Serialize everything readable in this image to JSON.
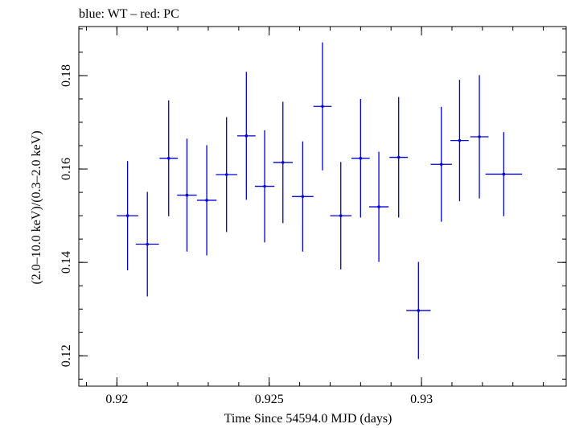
{
  "chart_data": {
    "type": "scatter",
    "title": "blue: WT – red: PC",
    "xlabel": "Time Since 54594.0 MJD (days)",
    "ylabel": "(2.0–10.0 keV)/(0.3–2.0 keV)",
    "xlim": [
      0.91875,
      0.93475
    ],
    "ylim": [
      0.1135,
      0.1905
    ],
    "x_ticks": [
      {
        "value": 0.92,
        "label": "0.92"
      },
      {
        "value": 0.925,
        "label": "0.925"
      },
      {
        "value": 0.93,
        "label": "0.93"
      }
    ],
    "y_ticks": [
      {
        "value": 0.12,
        "label": "0.12"
      },
      {
        "value": 0.14,
        "label": "0.14"
      },
      {
        "value": 0.16,
        "label": "0.16"
      },
      {
        "value": 0.18,
        "label": "0.18"
      }
    ],
    "x_minor_step": 0.001,
    "y_minor_step": 0.005,
    "series": [
      {
        "color": "#0000dd",
        "points": [
          {
            "x": 0.92035,
            "y": 0.15,
            "xerr": 0.00035,
            "yerr": 0.0117
          },
          {
            "x": 0.921,
            "y": 0.1439,
            "xerr": 0.00038,
            "yerr": 0.0112
          },
          {
            "x": 0.9217,
            "y": 0.1623,
            "xerr": 0.0003,
            "yerr": 0.0124
          },
          {
            "x": 0.9223,
            "y": 0.1544,
            "xerr": 0.00032,
            "yerr": 0.0121
          },
          {
            "x": 0.92295,
            "y": 0.1533,
            "xerr": 0.00032,
            "yerr": 0.0118
          },
          {
            "x": 0.9236,
            "y": 0.1588,
            "xerr": 0.00035,
            "yerr": 0.0123
          },
          {
            "x": 0.92425,
            "y": 0.1671,
            "xerr": 0.0003,
            "yerr": 0.0137
          },
          {
            "x": 0.92485,
            "y": 0.1563,
            "xerr": 0.00032,
            "yerr": 0.012
          },
          {
            "x": 0.92545,
            "y": 0.1614,
            "xerr": 0.00032,
            "yerr": 0.013
          },
          {
            "x": 0.9261,
            "y": 0.1541,
            "xerr": 0.00035,
            "yerr": 0.0118
          },
          {
            "x": 0.92675,
            "y": 0.1734,
            "xerr": 0.0003,
            "yerr": 0.0137
          },
          {
            "x": 0.92735,
            "y": 0.15,
            "xerr": 0.00035,
            "yerr": 0.0115
          },
          {
            "x": 0.928,
            "y": 0.1623,
            "xerr": 0.0003,
            "yerr": 0.0127
          },
          {
            "x": 0.9286,
            "y": 0.1519,
            "xerr": 0.00032,
            "yerr": 0.0118
          },
          {
            "x": 0.92925,
            "y": 0.1625,
            "xerr": 0.0003,
            "yerr": 0.0129
          },
          {
            "x": 0.9299,
            "y": 0.1297,
            "xerr": 0.0004,
            "yerr": 0.0104
          },
          {
            "x": 0.93065,
            "y": 0.161,
            "xerr": 0.00035,
            "yerr": 0.0123
          },
          {
            "x": 0.93125,
            "y": 0.1661,
            "xerr": 0.0003,
            "yerr": 0.013
          },
          {
            "x": 0.9319,
            "y": 0.1669,
            "xerr": 0.0003,
            "yerr": 0.0132
          },
          {
            "x": 0.9327,
            "y": 0.1589,
            "xerr": 0.0006,
            "yerr": 0.009
          }
        ]
      }
    ]
  }
}
